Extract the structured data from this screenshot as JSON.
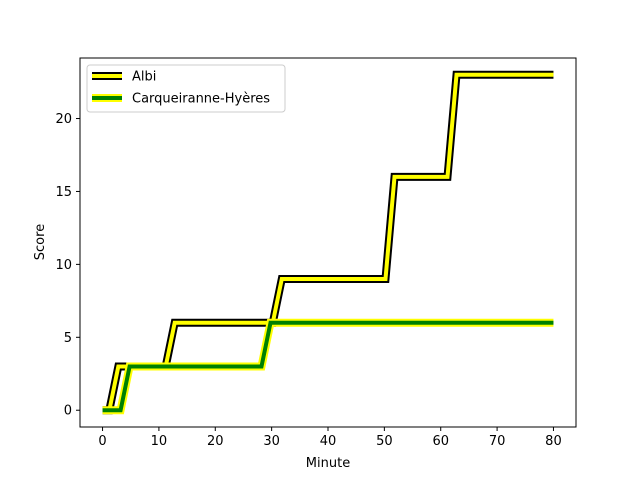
{
  "chart_data": {
    "type": "line",
    "xlabel": "Minute",
    "ylabel": "Score",
    "xlim": [
      -4,
      84
    ],
    "ylim": [
      -1.15,
      24.15
    ],
    "xticks": [
      0,
      10,
      20,
      30,
      40,
      50,
      60,
      70,
      80
    ],
    "yticks": [
      0,
      5,
      10,
      15,
      20
    ],
    "legend": "top-left",
    "grid": false,
    "series": [
      {
        "name": "Albi",
        "line_color": "#ffff00",
        "edge_color": "#000000",
        "x": [
          0,
          2,
          12,
          31,
          51,
          62,
          80
        ],
        "y": [
          0,
          3,
          6,
          9,
          16,
          23,
          23
        ]
      },
      {
        "name": "Carqueiranne-Hyères",
        "line_color": "#008000",
        "edge_color": "#ffff00",
        "x": [
          0,
          4,
          29,
          80
        ],
        "y": [
          0,
          3,
          6,
          6
        ]
      }
    ]
  }
}
